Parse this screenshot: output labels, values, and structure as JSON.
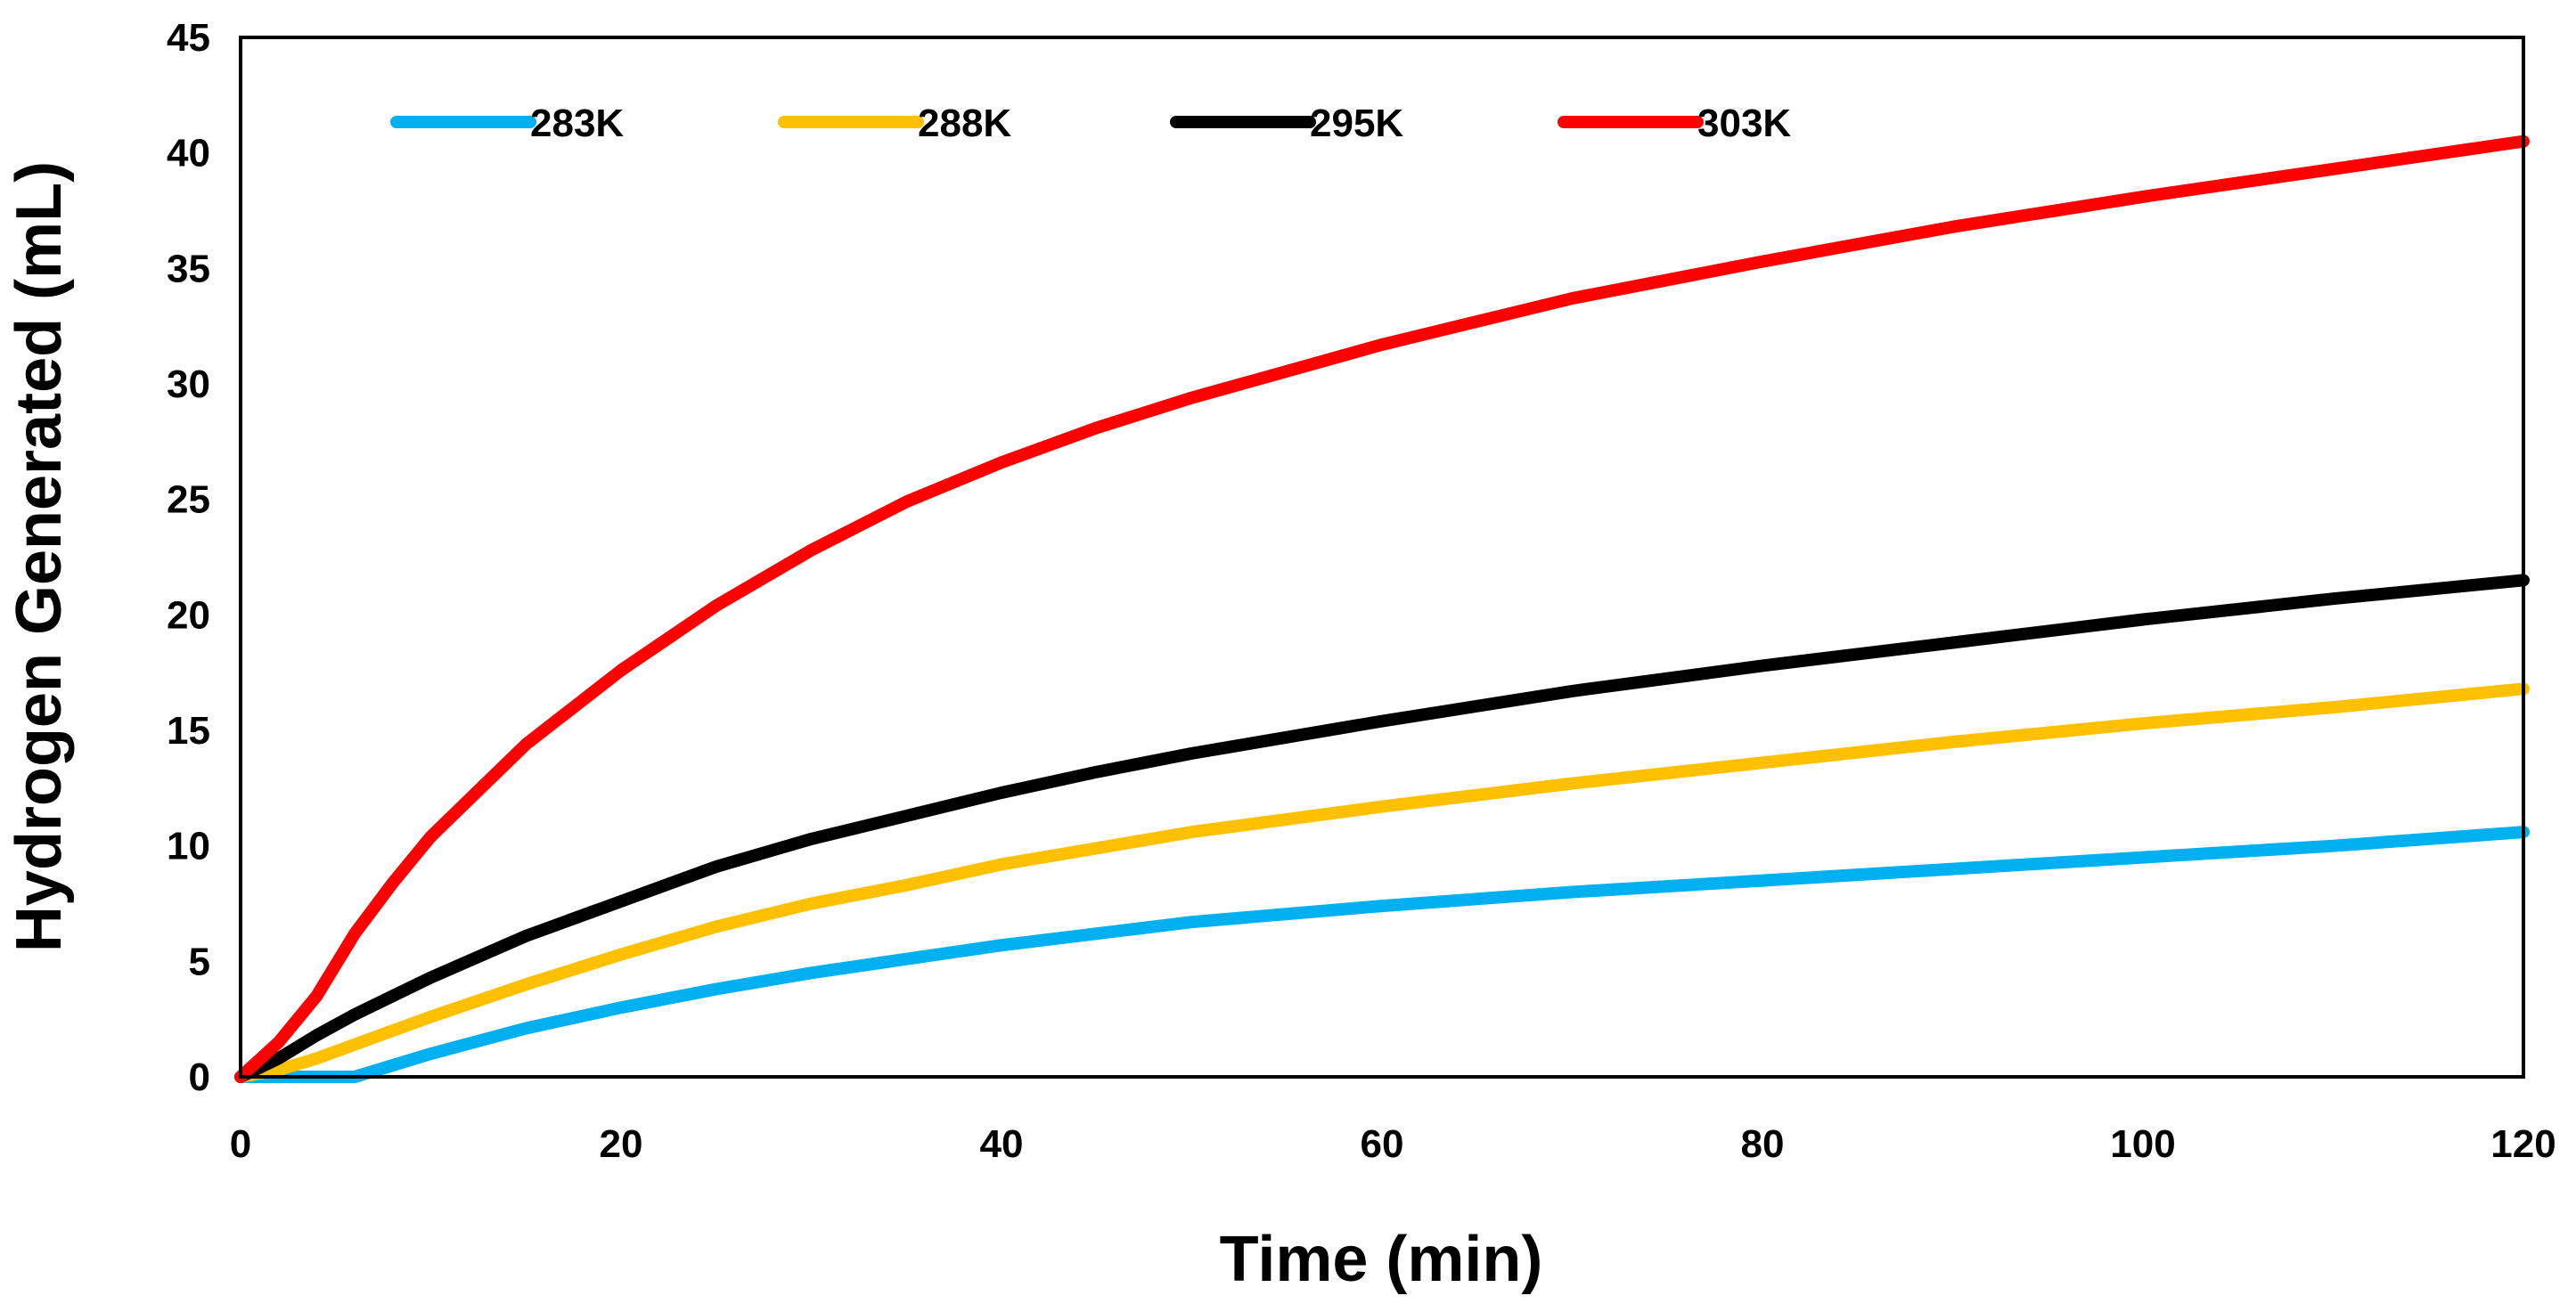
{
  "chart_data": {
    "type": "line",
    "title": "",
    "xlabel": "Time (min)",
    "ylabel": "Hydrogen Generated (mL)",
    "xlim": [
      0,
      120
    ],
    "ylim": [
      0,
      45
    ],
    "xticks": [
      0,
      20,
      40,
      60,
      80,
      100,
      120
    ],
    "yticks": [
      0,
      5,
      10,
      15,
      20,
      25,
      30,
      35,
      40,
      45
    ],
    "grid": false,
    "legend_position": "top",
    "x": [
      0,
      2,
      4,
      6,
      8,
      10,
      15,
      20,
      25,
      30,
      35,
      40,
      45,
      50,
      60,
      70,
      80,
      90,
      100,
      110,
      120
    ],
    "series": [
      {
        "name": "283K",
        "color": "#00B0F0",
        "values": [
          0,
          0,
          0,
          0,
          0.5,
          1.0,
          2.1,
          3.0,
          3.8,
          4.5,
          5.1,
          5.7,
          6.2,
          6.7,
          7.4,
          8.0,
          8.5,
          9.0,
          9.5,
          10.0,
          10.6
        ]
      },
      {
        "name": "288K",
        "color": "#FFC000",
        "values": [
          0,
          0.3,
          0.8,
          1.4,
          2.0,
          2.6,
          4.0,
          5.3,
          6.5,
          7.5,
          8.3,
          9.2,
          9.9,
          10.6,
          11.7,
          12.7,
          13.6,
          14.5,
          15.3,
          16.0,
          16.8
        ]
      },
      {
        "name": "295K",
        "color": "#000000",
        "values": [
          0,
          0.8,
          1.8,
          2.7,
          3.5,
          4.3,
          6.1,
          7.6,
          9.1,
          10.3,
          11.3,
          12.3,
          13.2,
          14.0,
          15.4,
          16.7,
          17.8,
          18.8,
          19.8,
          20.7,
          21.5
        ]
      },
      {
        "name": "303K",
        "color": "#FF0000",
        "values": [
          0,
          1.5,
          3.5,
          6.2,
          8.4,
          10.4,
          14.4,
          17.6,
          20.4,
          22.8,
          24.9,
          26.6,
          28.1,
          29.4,
          31.7,
          33.7,
          35.3,
          36.8,
          38.1,
          39.3,
          40.5
        ]
      }
    ]
  }
}
